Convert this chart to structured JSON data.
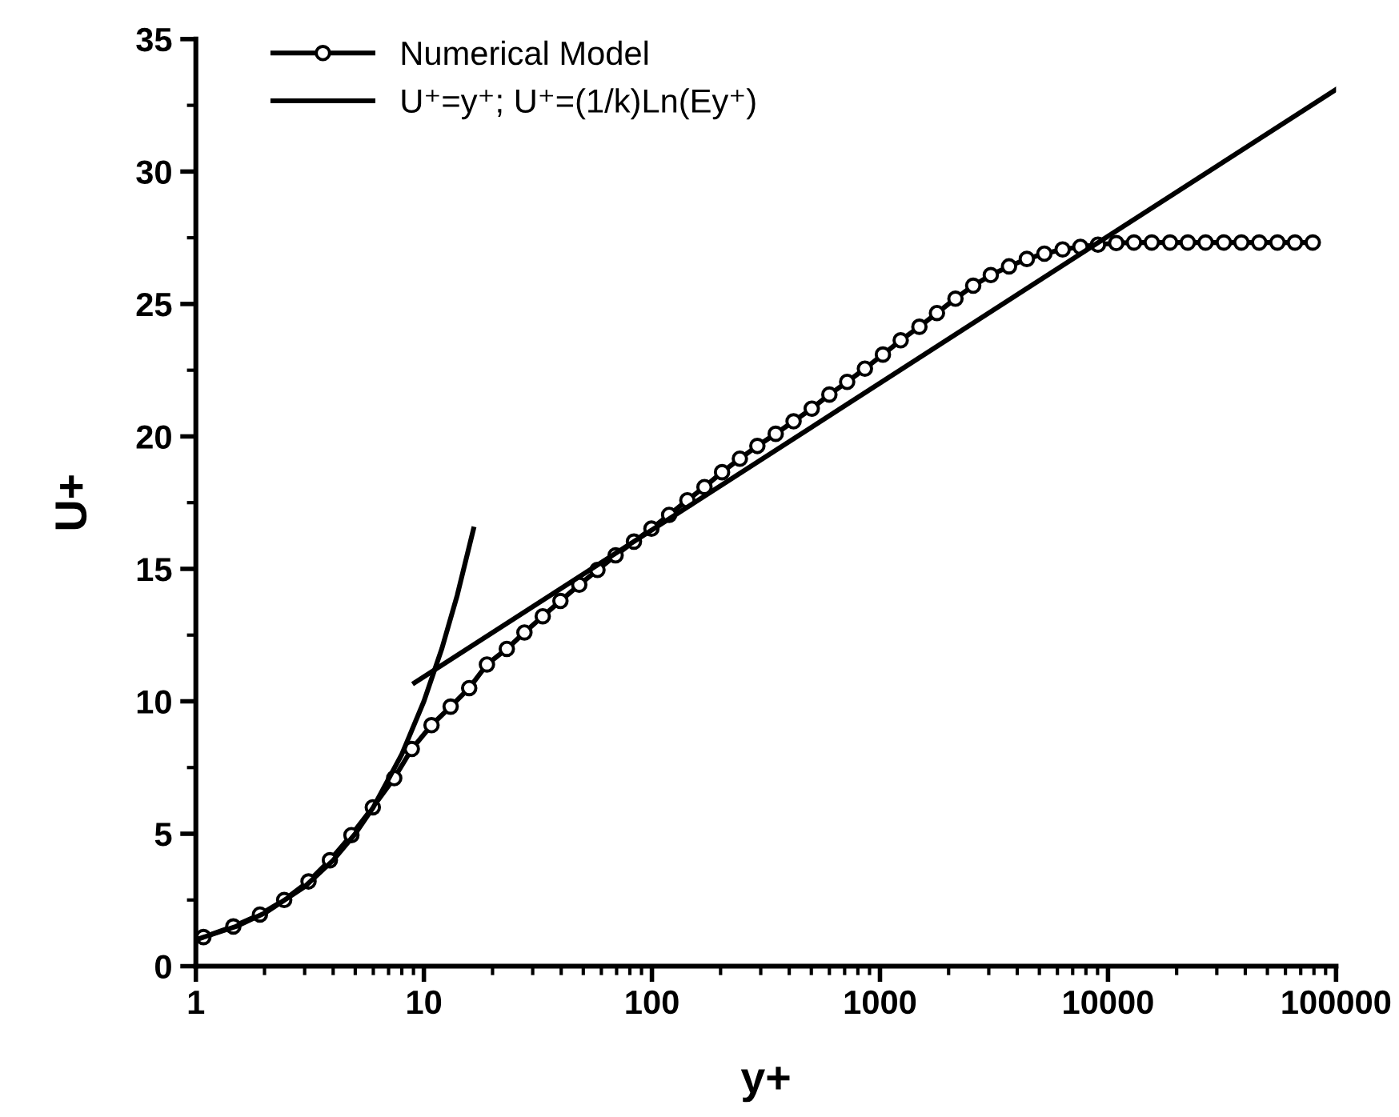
{
  "chart_data": {
    "type": "line",
    "xlabel": "y+",
    "ylabel": "U+",
    "log": "x",
    "xlim": [
      1,
      100000
    ],
    "xticks": [
      1,
      10,
      100,
      1000,
      10000,
      100000
    ],
    "ylim": [
      0,
      35
    ],
    "yticks": [
      0,
      5,
      10,
      15,
      20,
      25,
      30,
      35
    ],
    "grid": false,
    "legend": "top left",
    "series": [
      {
        "name": "Numerical Model",
        "color": "#000000",
        "marker": "circle",
        "x": [
          1.08,
          1.46,
          1.91,
          2.44,
          3.12,
          3.87,
          4.81,
          5.97,
          7.41,
          8.85,
          10.8,
          13.1,
          15.8,
          18.9,
          23.1,
          27.6,
          33.2,
          39.7,
          48.0,
          57.7,
          69.3,
          83.4,
          99.5,
          119,
          143,
          170,
          203,
          243,
          290,
          349,
          418,
          502,
          600,
          718,
          859,
          1030,
          1233,
          1489,
          1778,
          2143,
          2564,
          3062,
          3681,
          4406,
          5260,
          6324,
          7568,
          9036,
          10870,
          13000,
          15560,
          18710,
          22390,
          26790,
          32210,
          38460,
          46030,
          55340,
          66070,
          79070
        ],
        "values": [
          1.1,
          1.5,
          1.95,
          2.5,
          3.2,
          4.0,
          4.95,
          6.0,
          7.1,
          8.2,
          9.1,
          9.8,
          10.5,
          11.39,
          11.98,
          12.6,
          13.21,
          13.79,
          14.4,
          14.96,
          15.51,
          16.03,
          16.52,
          17.04,
          17.59,
          18.09,
          18.65,
          19.16,
          19.64,
          20.1,
          20.57,
          21.05,
          21.58,
          22.06,
          22.56,
          23.09,
          23.63,
          24.14,
          24.66,
          25.2,
          25.69,
          26.09,
          26.42,
          26.7,
          26.9,
          27.06,
          27.16,
          27.24,
          27.3,
          27.32,
          27.32,
          27.32,
          27.32,
          27.32,
          27.32,
          27.32,
          27.32,
          27.32,
          27.32,
          27.32
        ]
      },
      {
        "name": "U⁺=y⁺; U⁺=(1/k)Ln(Ey⁺)",
        "color": "#000000",
        "marker": "none",
        "x": [
          1,
          1.5,
          2,
          3,
          4,
          5,
          6,
          8,
          10,
          12,
          14,
          16.5
        ],
        "values": [
          1,
          1.5,
          2,
          3,
          4,
          5,
          6,
          8,
          10,
          12,
          14,
          16.5
        ]
      },
      {
        "color": "#000000",
        "marker": "none",
        "x": [
          9.1,
          100000
        ],
        "values": [
          10.7,
          33.1
        ]
      }
    ]
  }
}
